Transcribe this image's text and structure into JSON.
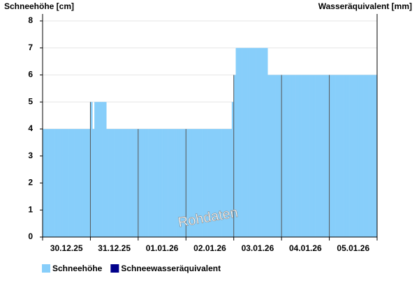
{
  "chart_data": {
    "type": "step-area",
    "y_label": "Schneehöhe [cm]",
    "y2_label": "Wasseräquivalent [mm]",
    "watermark": "Rohdaten",
    "categories": [
      "30.12.25",
      "31.12.25",
      "01.01.26",
      "02.01.26",
      "03.01.26",
      "04.01.26",
      "05.01.26"
    ],
    "ylim": [
      0,
      8
    ],
    "yticks": [
      0,
      1,
      2,
      3,
      4,
      5,
      6,
      7,
      8
    ],
    "grid": true,
    "series": [
      {
        "name": "Schneehöhe",
        "color": "#87cefa",
        "values": [
          [
            4,
            4,
            4,
            4,
            4,
            4,
            4,
            4,
            4,
            4,
            4,
            4,
            4,
            4,
            4,
            4,
            4,
            4,
            4,
            4,
            4,
            4,
            4,
            4
          ],
          [
            5,
            4,
            5,
            5,
            5,
            5,
            5,
            5,
            4,
            4,
            4,
            4,
            4,
            4,
            4,
            4,
            4,
            4,
            4,
            4,
            4,
            4,
            4,
            4
          ],
          [
            4,
            4,
            4,
            4,
            4,
            4,
            4,
            4,
            4,
            4,
            4,
            4,
            4,
            4,
            4,
            4,
            4,
            4,
            4,
            4,
            4,
            4,
            4,
            4
          ],
          [
            4,
            4,
            4,
            4,
            4,
            4,
            4,
            4,
            4,
            4,
            4,
            4,
            4,
            4,
            4,
            4,
            4,
            4,
            4,
            4,
            4,
            4,
            4,
            5
          ],
          [
            6,
            7,
            7,
            7,
            7,
            7,
            7,
            7,
            7,
            7,
            7,
            7,
            7,
            7,
            7,
            7,
            7,
            6,
            6,
            6,
            6,
            6,
            6,
            6
          ],
          [
            6,
            6,
            6,
            6,
            6,
            6,
            6,
            6,
            6,
            6,
            6,
            6,
            6,
            6,
            6,
            6,
            6,
            6,
            6,
            6,
            6,
            6,
            6,
            6
          ],
          [
            6,
            6,
            6,
            6,
            6,
            6,
            6,
            6,
            6,
            6,
            6,
            6,
            6,
            6,
            6,
            6,
            6,
            6,
            6,
            6,
            6,
            6,
            6,
            6
          ]
        ]
      },
      {
        "name": "Schneewasseräquivalent",
        "color": "#00008b"
      }
    ]
  }
}
